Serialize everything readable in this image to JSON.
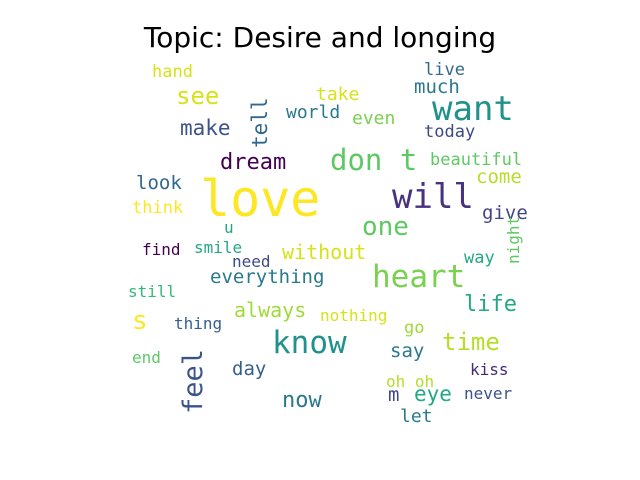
{
  "title": "Topic: Desire and longing",
  "words": [
    {
      "text": "love",
      "color": "#fde725"
    },
    {
      "text": "will",
      "color": "#46327e"
    },
    {
      "text": "want",
      "color": "#21918c"
    },
    {
      "text": "heart",
      "color": "#7ad151"
    },
    {
      "text": "know",
      "color": "#21918c"
    },
    {
      "text": "don t",
      "color": "#5ec962"
    },
    {
      "text": "feel",
      "color": "#3b528b"
    },
    {
      "text": "one",
      "color": "#5ec962"
    },
    {
      "text": "time",
      "color": "#b5de2b"
    },
    {
      "text": "life",
      "color": "#22a884"
    },
    {
      "text": "now",
      "color": "#2a788e"
    },
    {
      "text": "see",
      "color": "#d8e219"
    },
    {
      "text": "dream",
      "color": "#440154"
    },
    {
      "text": "make",
      "color": "#3b528b"
    },
    {
      "text": "s",
      "color": "#fde725"
    },
    {
      "text": "eye",
      "color": "#22a884"
    },
    {
      "text": "tell",
      "color": "#31688e"
    },
    {
      "text": "everything",
      "color": "#2a788e"
    },
    {
      "text": "always",
      "color": "#a0da39"
    },
    {
      "text": "without",
      "color": "#d8e219"
    },
    {
      "text": "give",
      "color": "#414487"
    },
    {
      "text": "come",
      "color": "#b5de2b"
    },
    {
      "text": "much",
      "color": "#2a788e"
    },
    {
      "text": "look",
      "color": "#31688e"
    },
    {
      "text": "day",
      "color": "#355f8d"
    },
    {
      "text": "say",
      "color": "#2a788e"
    },
    {
      "text": "m",
      "color": "#3e4989"
    },
    {
      "text": "take",
      "color": "#d8e219"
    },
    {
      "text": "world",
      "color": "#2a788e"
    },
    {
      "text": "even",
      "color": "#7ad151"
    },
    {
      "text": "today",
      "color": "#3e4989"
    },
    {
      "text": "live",
      "color": "#31688e"
    },
    {
      "text": "beautiful",
      "color": "#5ec962"
    },
    {
      "text": "way",
      "color": "#22a884"
    },
    {
      "text": "night",
      "color": "#5ec962"
    },
    {
      "text": "go",
      "color": "#a0da39"
    },
    {
      "text": "nothing",
      "color": "#d8e219"
    },
    {
      "text": "thing",
      "color": "#355f8d"
    },
    {
      "text": "need",
      "color": "#3e4989"
    },
    {
      "text": "smile",
      "color": "#22a884"
    },
    {
      "text": "find",
      "color": "#440154"
    },
    {
      "text": "u",
      "color": "#22a884"
    },
    {
      "text": "think",
      "color": "#fde725"
    },
    {
      "text": "still",
      "color": "#35b779"
    },
    {
      "text": "end",
      "color": "#5ec962"
    },
    {
      "text": "hand",
      "color": "#d8e219"
    },
    {
      "text": "kiss",
      "color": "#482878"
    },
    {
      "text": "never",
      "color": "#3b528b"
    },
    {
      "text": "let",
      "color": "#2a788e"
    },
    {
      "text": "oh oh",
      "color": "#b5de2b"
    }
  ]
}
